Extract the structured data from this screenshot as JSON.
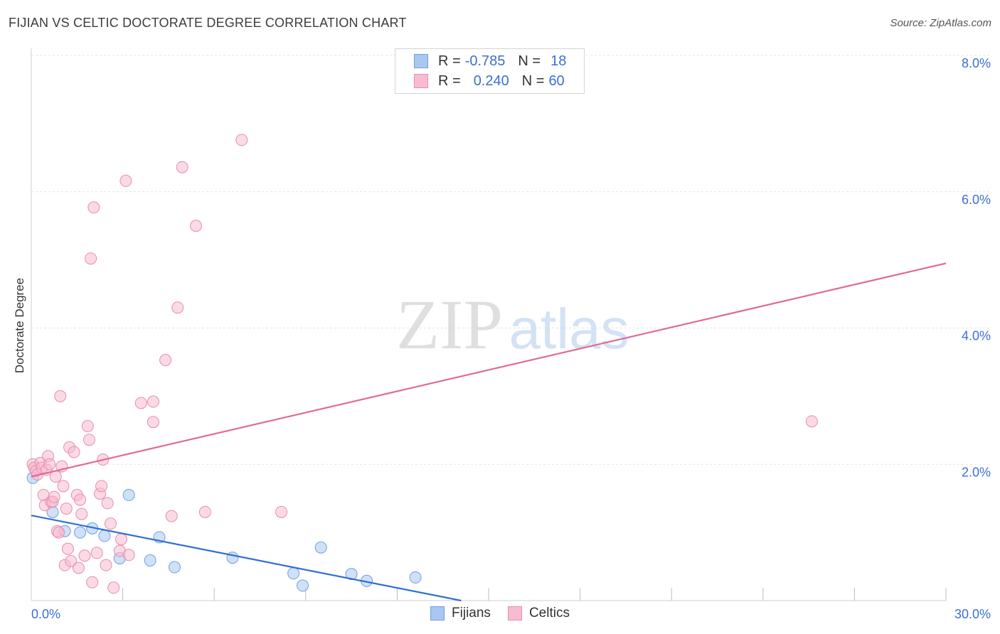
{
  "header": {
    "title": "FIJIAN VS CELTIC DOCTORATE DEGREE CORRELATION CHART",
    "source": "Source: ZipAtlas.com"
  },
  "watermark": {
    "zip": "ZIP",
    "atlas": "atlas"
  },
  "legend": {
    "rows": [
      {
        "r_label": "R =",
        "r_value": "-0.785",
        "n_label": "N =",
        "n_value": "18",
        "color": "#a9c8f0",
        "border": "#6e9fe0"
      },
      {
        "r_label": "R =",
        "r_value": "0.240",
        "n_label": "N =",
        "n_value": "60",
        "color": "#f7bcd0",
        "border": "#e88cab"
      }
    ]
  },
  "bottom_legend": {
    "items": [
      {
        "label": "Fijians",
        "color": "#a9c8f0",
        "border": "#6e9fe0"
      },
      {
        "label": "Celtics",
        "color": "#f7bcd0",
        "border": "#e88cab"
      }
    ]
  },
  "chart_data": {
    "type": "scatter",
    "title": "FIJIAN VS CELTIC DOCTORATE DEGREE CORRELATION CHART",
    "xlabel": "",
    "ylabel": "Doctorate Degree",
    "xlim": [
      0,
      30
    ],
    "ylim": [
      0,
      8
    ],
    "x_tick_labels": [
      {
        "value": 0,
        "label": "0.0%"
      },
      {
        "value": 30,
        "label": "30.0%"
      }
    ],
    "y_tick_labels": [
      {
        "value": 2,
        "label": "2.0%"
      },
      {
        "value": 4,
        "label": "4.0%"
      },
      {
        "value": 6,
        "label": "6.0%"
      },
      {
        "value": 8,
        "label": "8.0%"
      }
    ],
    "x_minor_ticks": [
      3,
      6,
      9,
      12,
      15,
      18,
      21,
      24,
      27,
      30
    ],
    "grid": true,
    "series": [
      {
        "name": "Fijians",
        "color": "#a9c8f0",
        "border": "#6e9fe0",
        "line_color": "#2f6fd0",
        "trend": {
          "x0": 0,
          "y0": 1.25,
          "x1": 14.1,
          "y1": 0.0
        },
        "points": [
          [
            0.05,
            1.8
          ],
          [
            0.7,
            1.3
          ],
          [
            1.1,
            1.02
          ],
          [
            1.6,
            1.0
          ],
          [
            2.0,
            1.06
          ],
          [
            2.4,
            0.95
          ],
          [
            2.9,
            0.62
          ],
          [
            3.2,
            1.55
          ],
          [
            3.9,
            0.59
          ],
          [
            4.2,
            0.93
          ],
          [
            4.7,
            0.49
          ],
          [
            6.6,
            0.63
          ],
          [
            8.6,
            0.4
          ],
          [
            8.9,
            0.22
          ],
          [
            9.5,
            0.78
          ],
          [
            10.5,
            0.39
          ],
          [
            11.0,
            0.29
          ],
          [
            12.6,
            0.34
          ]
        ]
      },
      {
        "name": "Celtics",
        "color": "#f7bcd0",
        "border": "#e88cab",
        "line_color": "#e06b96",
        "trend": {
          "x0": 0,
          "y0": 1.82,
          "x1": 30,
          "y1": 4.95
        },
        "points": [
          [
            0.05,
            2.0
          ],
          [
            0.1,
            1.95
          ],
          [
            0.15,
            1.9
          ],
          [
            0.2,
            1.85
          ],
          [
            0.3,
            2.02
          ],
          [
            0.35,
            1.95
          ],
          [
            0.4,
            1.55
          ],
          [
            0.45,
            1.4
          ],
          [
            0.5,
            1.92
          ],
          [
            0.55,
            2.12
          ],
          [
            0.6,
            2.0
          ],
          [
            0.65,
            1.45
          ],
          [
            0.7,
            1.45
          ],
          [
            0.75,
            1.52
          ],
          [
            0.8,
            1.82
          ],
          [
            0.85,
            1.02
          ],
          [
            0.9,
            1.0
          ],
          [
            0.95,
            3.0
          ],
          [
            1.0,
            1.97
          ],
          [
            1.05,
            1.68
          ],
          [
            1.1,
            0.52
          ],
          [
            1.15,
            1.35
          ],
          [
            1.2,
            0.76
          ],
          [
            1.25,
            2.25
          ],
          [
            1.3,
            0.58
          ],
          [
            1.4,
            2.18
          ],
          [
            1.5,
            1.55
          ],
          [
            1.55,
            0.48
          ],
          [
            1.6,
            1.48
          ],
          [
            1.65,
            1.27
          ],
          [
            1.75,
            0.66
          ],
          [
            1.85,
            2.56
          ],
          [
            1.9,
            2.36
          ],
          [
            1.95,
            5.02
          ],
          [
            2.0,
            0.27
          ],
          [
            2.05,
            5.77
          ],
          [
            2.15,
            0.7
          ],
          [
            2.25,
            1.57
          ],
          [
            2.3,
            1.68
          ],
          [
            2.35,
            2.07
          ],
          [
            2.45,
            0.52
          ],
          [
            2.5,
            1.43
          ],
          [
            2.6,
            1.13
          ],
          [
            2.7,
            0.19
          ],
          [
            2.9,
            0.73
          ],
          [
            2.95,
            0.9
          ],
          [
            3.1,
            6.16
          ],
          [
            3.2,
            0.67
          ],
          [
            3.6,
            2.9
          ],
          [
            4.0,
            2.92
          ],
          [
            4.0,
            2.62
          ],
          [
            4.4,
            3.53
          ],
          [
            4.6,
            1.24
          ],
          [
            4.8,
            4.3
          ],
          [
            4.95,
            6.36
          ],
          [
            5.4,
            5.5
          ],
          [
            5.7,
            1.3
          ],
          [
            6.9,
            6.76
          ],
          [
            8.2,
            1.3
          ],
          [
            25.6,
            2.63
          ]
        ]
      }
    ]
  }
}
